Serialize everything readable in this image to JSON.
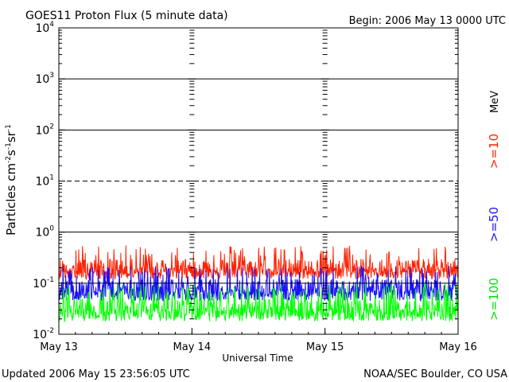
{
  "header": {
    "title": "GOES11 Proton Flux (5 minute data)",
    "begin": "Begin: 2006 May 13 0000 UTC"
  },
  "footer": {
    "updated": "Updated 2006 May 15 23:56:05 UTC",
    "credit": "NOAA/SEC Boulder, CO USA"
  },
  "colors": {
    "ge10": "#ff2000",
    "ge50": "#1a10ff",
    "ge100": "#00ff00",
    "axis": "#000000"
  },
  "chart_data": {
    "type": "line",
    "title": "GOES11 Proton Flux (5 minute data)",
    "xlabel": "Universal Time",
    "ylabel_main": "Particles cm",
    "ylabel_exp1": "-2",
    "ylabel_mid1": "s",
    "ylabel_exp2": "-1",
    "ylabel_mid2": "sr",
    "ylabel_exp3": "-1",
    "y_scale": "log",
    "ylim": [
      0.01,
      10000
    ],
    "xlim_days": [
      0,
      3
    ],
    "x_ticks": [
      {
        "day": 0,
        "label": "May 13"
      },
      {
        "day": 1,
        "label": "May 14"
      },
      {
        "day": 2,
        "label": "May 15"
      },
      {
        "day": 3,
        "label": "May 16"
      }
    ],
    "y_ticks": [
      {
        "value": 0.01,
        "base": "10",
        "exp": "-2"
      },
      {
        "value": 0.1,
        "base": "10",
        "exp": "-1"
      },
      {
        "value": 1,
        "base": "10",
        "exp": "0"
      },
      {
        "value": 10,
        "base": "10",
        "exp": "1"
      },
      {
        "value": 100,
        "base": "10",
        "exp": "2"
      },
      {
        "value": 1000,
        "base": "10",
        "exp": "3"
      },
      {
        "value": 10000,
        "base": "10",
        "exp": "4"
      }
    ],
    "horizontal_lines": [
      {
        "value": 1000,
        "style": "solid"
      },
      {
        "value": 100,
        "style": "solid"
      },
      {
        "value": 10,
        "style": "dashed"
      },
      {
        "value": 1,
        "style": "solid"
      },
      {
        "value": 0.1,
        "style": "solid"
      }
    ],
    "unit_label": "MeV",
    "series": [
      {
        "name": ">=10",
        "color": "#ff2000",
        "baseline": 0.2,
        "min": 0.12,
        "max": 0.55
      },
      {
        "name": ">=50",
        "color": "#1a10ff",
        "baseline": 0.08,
        "min": 0.045,
        "max": 0.22
      },
      {
        "name": ">=100",
        "color": "#00ff00",
        "baseline": 0.032,
        "min": 0.018,
        "max": 0.1
      }
    ]
  }
}
